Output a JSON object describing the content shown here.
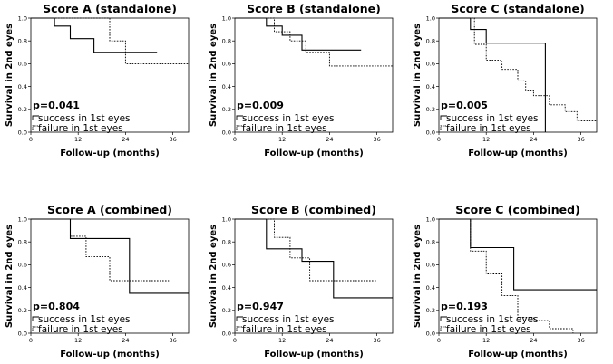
{
  "chart_data": [
    {
      "type": "line",
      "title": "Score A (standalone)",
      "xlabel": "Follow-up (months)",
      "ylabel": "Survival in 2nd eyes",
      "xlim": [
        0,
        40
      ],
      "ylim": [
        0,
        1
      ],
      "xticks": [
        0,
        12,
        24,
        36
      ],
      "yticks": [
        0.0,
        0.2,
        0.4,
        0.6,
        0.8,
        1.0
      ],
      "p_value": "p=0.041",
      "series": [
        {
          "name": "success in 1st eyes",
          "style": "solid",
          "x": [
            0,
            6,
            6,
            10,
            10,
            16,
            16,
            32
          ],
          "y": [
            1.0,
            1.0,
            0.93,
            0.93,
            0.82,
            0.82,
            0.7,
            0.7
          ]
        },
        {
          "name": "failure in 1st eyes",
          "style": "dotted",
          "x": [
            0,
            20,
            20,
            24,
            24,
            40
          ],
          "y": [
            1.0,
            1.0,
            0.8,
            0.8,
            0.6,
            0.6
          ]
        }
      ]
    },
    {
      "type": "line",
      "title": "Score B (standalone)",
      "xlabel": "Follow-up (months)",
      "ylabel": "Survival in 2nd eyes",
      "xlim": [
        0,
        40
      ],
      "ylim": [
        0,
        1
      ],
      "xticks": [
        0,
        12,
        24,
        36
      ],
      "yticks": [
        0.0,
        0.2,
        0.4,
        0.6,
        0.8,
        1.0
      ],
      "p_value": "p=0.009",
      "series": [
        {
          "name": "success in 1st eyes",
          "style": "solid",
          "x": [
            0,
            8,
            8,
            12,
            12,
            17,
            17,
            32
          ],
          "y": [
            1.0,
            1.0,
            0.93,
            0.93,
            0.85,
            0.85,
            0.72,
            0.72
          ]
        },
        {
          "name": "failure in 1st eyes",
          "style": "dotted",
          "x": [
            0,
            10,
            10,
            14,
            14,
            18,
            18,
            24,
            24,
            40
          ],
          "y": [
            1.0,
            1.0,
            0.88,
            0.88,
            0.8,
            0.8,
            0.7,
            0.7,
            0.58,
            0.58
          ]
        }
      ]
    },
    {
      "type": "line",
      "title": "Score C (standalone)",
      "xlabel": "Follow-up (months)",
      "ylabel": "Survival in 2nd eyes",
      "xlim": [
        0,
        40
      ],
      "ylim": [
        0,
        1
      ],
      "xticks": [
        0,
        12,
        24,
        36
      ],
      "yticks": [
        0.0,
        0.2,
        0.4,
        0.6,
        0.8,
        1.0
      ],
      "p_value": "p=0.005",
      "series": [
        {
          "name": "success in 1st eyes",
          "style": "solid",
          "x": [
            0,
            8,
            8,
            12,
            12,
            27,
            27
          ],
          "y": [
            1.0,
            1.0,
            0.9,
            0.9,
            0.78,
            0.78,
            0.0
          ]
        },
        {
          "name": "failure in 1st eyes",
          "style": "dotted",
          "x": [
            0,
            9,
            9,
            12,
            12,
            16,
            16,
            20,
            20,
            22,
            22,
            24,
            24,
            28,
            28,
            32,
            32,
            35,
            35,
            40
          ],
          "y": [
            1.0,
            1.0,
            0.77,
            0.77,
            0.63,
            0.63,
            0.55,
            0.55,
            0.45,
            0.45,
            0.37,
            0.37,
            0.32,
            0.32,
            0.24,
            0.24,
            0.18,
            0.18,
            0.1,
            0.1
          ]
        }
      ]
    },
    {
      "type": "line",
      "title": "Score A (combined)",
      "xlabel": "Follow-up (months)",
      "ylabel": "Survival in 2nd eyes",
      "xlim": [
        0,
        40
      ],
      "ylim": [
        0,
        1
      ],
      "xticks": [
        0,
        12,
        24,
        36
      ],
      "yticks": [
        0.0,
        0.2,
        0.4,
        0.6,
        0.8,
        1.0
      ],
      "p_value": "p=0.804",
      "series": [
        {
          "name": "success in 1st eyes",
          "style": "solid",
          "x": [
            0,
            10,
            10,
            25,
            25,
            40
          ],
          "y": [
            1.0,
            1.0,
            0.83,
            0.83,
            0.35,
            0.35
          ]
        },
        {
          "name": "failure in 1st eyes",
          "style": "dotted",
          "x": [
            0,
            10,
            10,
            14,
            14,
            20,
            20,
            35
          ],
          "y": [
            1.0,
            1.0,
            0.85,
            0.85,
            0.67,
            0.67,
            0.46,
            0.46
          ]
        }
      ]
    },
    {
      "type": "line",
      "title": "Score B (combined)",
      "xlabel": "Follow-up (months)",
      "ylabel": "Survival in 2nd eyes",
      "xlim": [
        0,
        40
      ],
      "ylim": [
        0,
        1
      ],
      "xticks": [
        0,
        12,
        24,
        36
      ],
      "yticks": [
        0.0,
        0.2,
        0.4,
        0.6,
        0.8,
        1.0
      ],
      "p_value": "p=0.947",
      "series": [
        {
          "name": "success in 1st eyes",
          "style": "solid",
          "x": [
            0,
            8,
            8,
            17,
            17,
            25,
            25,
            40
          ],
          "y": [
            1.0,
            1.0,
            0.74,
            0.74,
            0.63,
            0.63,
            0.31,
            0.31
          ]
        },
        {
          "name": "failure in 1st eyes",
          "style": "dotted",
          "x": [
            0,
            10,
            10,
            14,
            14,
            19,
            19,
            36
          ],
          "y": [
            1.0,
            1.0,
            0.84,
            0.84,
            0.66,
            0.66,
            0.46,
            0.46
          ]
        }
      ]
    },
    {
      "type": "line",
      "title": "Score C (combined)",
      "xlabel": "Follow-up (months)",
      "ylabel": "Survival in 2nd eyes",
      "xlim": [
        0,
        40
      ],
      "ylim": [
        0,
        1
      ],
      "xticks": [
        0,
        12,
        24,
        36
      ],
      "yticks": [
        0.0,
        0.2,
        0.4,
        0.6,
        0.8,
        1.0
      ],
      "p_value": "p=0.193",
      "series": [
        {
          "name": "success in 1st eyes",
          "style": "solid",
          "x": [
            0,
            8,
            8,
            19,
            19,
            40
          ],
          "y": [
            1.0,
            1.0,
            0.75,
            0.75,
            0.38,
            0.38
          ]
        },
        {
          "name": "failure in 1st eyes",
          "style": "dotted",
          "x": [
            0,
            8,
            8,
            12,
            12,
            16,
            16,
            20,
            20,
            24,
            24,
            28,
            28,
            34,
            34
          ],
          "y": [
            1.0,
            1.0,
            0.72,
            0.72,
            0.52,
            0.52,
            0.33,
            0.33,
            0.14,
            0.14,
            0.11,
            0.11,
            0.04,
            0.04,
            0.0
          ]
        }
      ]
    }
  ]
}
